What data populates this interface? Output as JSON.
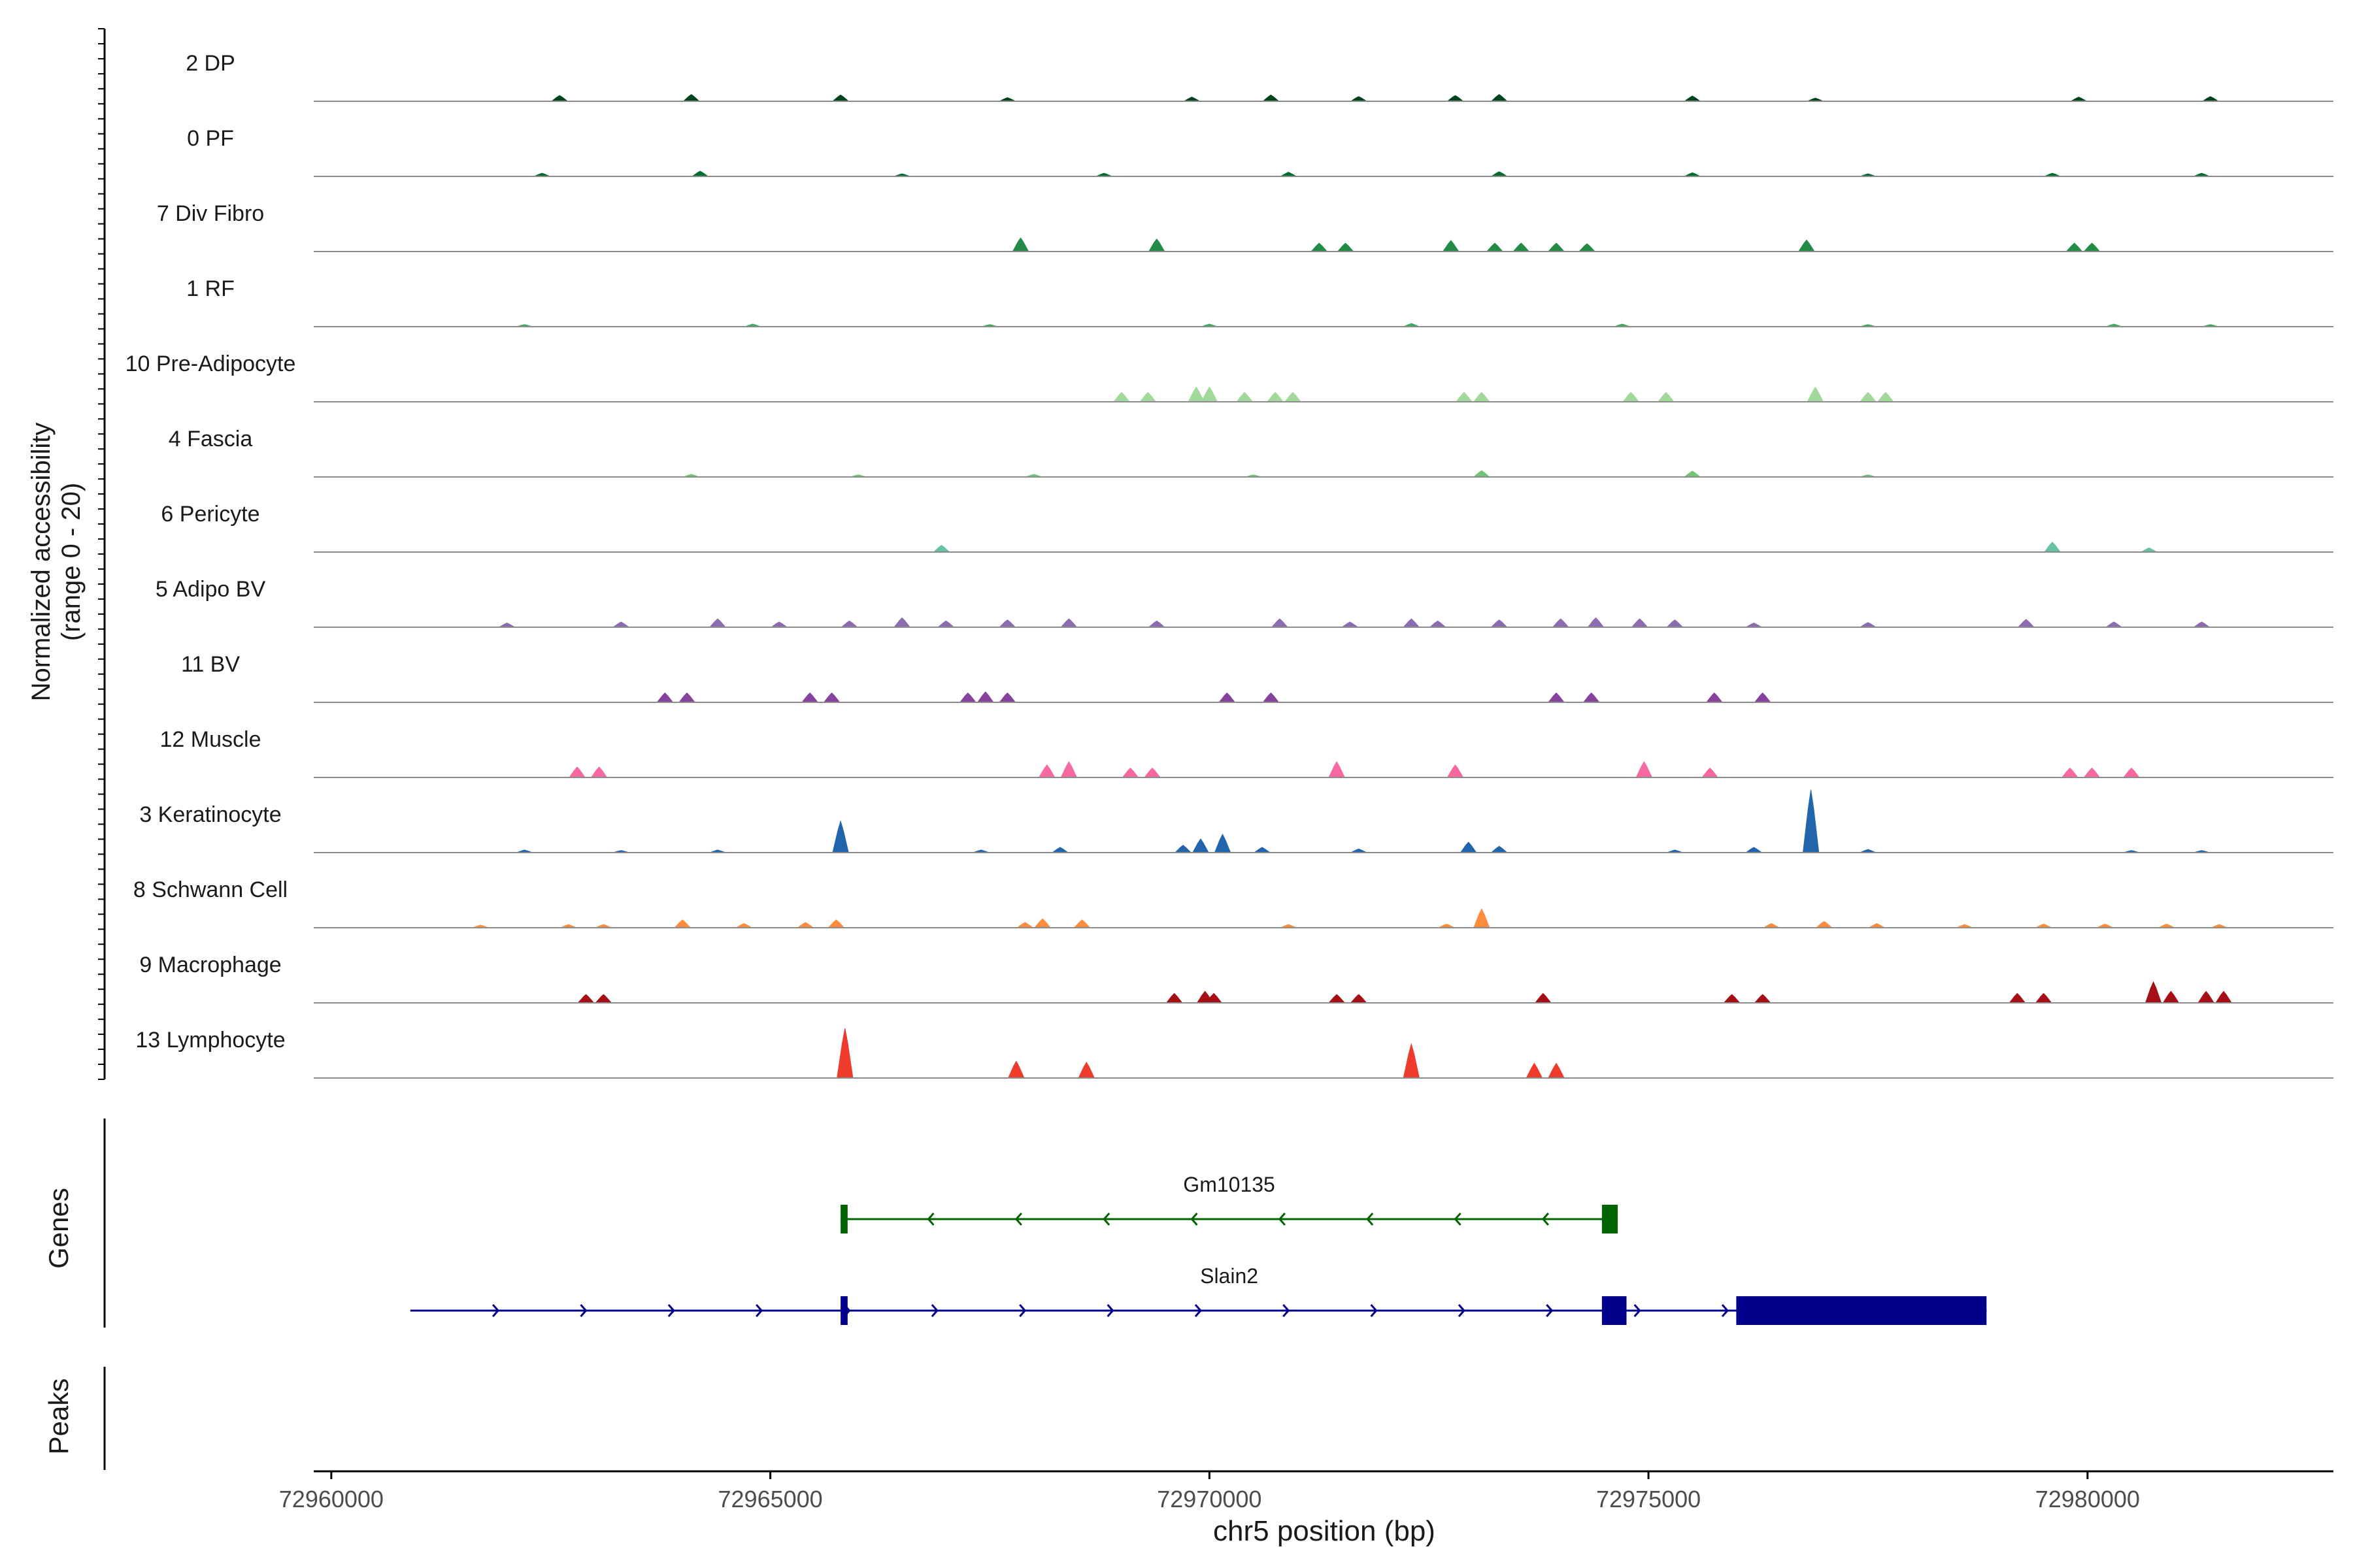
{
  "chart_data": {
    "type": "area",
    "title": "",
    "xlabel": "chr5 position (bp)",
    "ylabel_line1": "Normalized accessibility",
    "ylabel_line2": "(range 0 - 20)",
    "xlim": [
      72959800,
      72982800
    ],
    "x_ticks": [
      72960000,
      72965000,
      72970000,
      72975000,
      72980000
    ],
    "x_tick_labels": [
      "72960000",
      "72965000",
      "72970000",
      "72975000",
      "72980000"
    ],
    "ylim": [
      0,
      20
    ],
    "tracks": [
      {
        "name": "2 DP",
        "color": "#00441b",
        "peaks": [
          [
            72962600,
            1.1
          ],
          [
            72964100,
            1.3
          ],
          [
            72965800,
            1.2
          ],
          [
            72967700,
            0.7
          ],
          [
            72969800,
            0.8
          ],
          [
            72970700,
            1.2
          ],
          [
            72971700,
            0.9
          ],
          [
            72972800,
            1.1
          ],
          [
            72973300,
            1.3
          ],
          [
            72975500,
            1.0
          ],
          [
            72976900,
            0.6
          ],
          [
            72979900,
            0.8
          ],
          [
            72981400,
            0.9
          ]
        ]
      },
      {
        "name": "0 PF",
        "color": "#006d2c",
        "peaks": [
          [
            72962400,
            0.6
          ],
          [
            72964200,
            1.0
          ],
          [
            72966500,
            0.5
          ],
          [
            72968800,
            0.6
          ],
          [
            72970900,
            0.8
          ],
          [
            72973300,
            0.9
          ],
          [
            72975500,
            0.7
          ],
          [
            72977500,
            0.5
          ],
          [
            72979600,
            0.6
          ],
          [
            72981300,
            0.6
          ]
        ]
      },
      {
        "name": "7 Div Fibro",
        "color": "#238b45",
        "peaks": [
          [
            72967850,
            2.6
          ],
          [
            72969400,
            2.4
          ],
          [
            72971250,
            1.6
          ],
          [
            72971550,
            1.6
          ],
          [
            72972750,
            2.1
          ],
          [
            72973250,
            1.6
          ],
          [
            72973550,
            1.6
          ],
          [
            72973950,
            1.6
          ],
          [
            72974300,
            1.5
          ],
          [
            72976800,
            2.2
          ],
          [
            72979850,
            1.6
          ],
          [
            72980050,
            1.6
          ]
        ]
      },
      {
        "name": "1 RF",
        "color": "#41ab5d",
        "peaks": [
          [
            72962200,
            0.4
          ],
          [
            72964800,
            0.5
          ],
          [
            72967500,
            0.4
          ],
          [
            72970000,
            0.5
          ],
          [
            72972300,
            0.6
          ],
          [
            72974700,
            0.5
          ],
          [
            72977500,
            0.4
          ],
          [
            72980300,
            0.5
          ],
          [
            72981400,
            0.4
          ]
        ]
      },
      {
        "name": "10 Pre-Adipocyte",
        "color": "#a1d99b",
        "peaks": [
          [
            72969000,
            1.8
          ],
          [
            72969300,
            1.8
          ],
          [
            72969850,
            2.8
          ],
          [
            72970000,
            2.8
          ],
          [
            72970400,
            1.8
          ],
          [
            72970750,
            1.8
          ],
          [
            72970950,
            1.8
          ],
          [
            72972900,
            1.8
          ],
          [
            72973100,
            1.8
          ],
          [
            72974800,
            1.8
          ],
          [
            72975200,
            1.8
          ],
          [
            72976900,
            2.8
          ],
          [
            72977500,
            1.8
          ],
          [
            72977700,
            1.8
          ]
        ]
      },
      {
        "name": "4 Fascia",
        "color": "#74c476",
        "peaks": [
          [
            72964100,
            0.5
          ],
          [
            72966000,
            0.4
          ],
          [
            72968000,
            0.5
          ],
          [
            72970500,
            0.4
          ],
          [
            72973100,
            1.2
          ],
          [
            72975500,
            1.1
          ],
          [
            72977500,
            0.4
          ]
        ]
      },
      {
        "name": "6 Pericyte",
        "color": "#66c2a4",
        "peaks": [
          [
            72966950,
            1.3
          ],
          [
            72979600,
            1.9
          ],
          [
            72980700,
            0.8
          ]
        ]
      },
      {
        "name": "5 Adipo BV",
        "color": "#8c6bb1",
        "peaks": [
          [
            72962000,
            0.8
          ],
          [
            72963300,
            1.0
          ],
          [
            72964400,
            1.6
          ],
          [
            72965100,
            1.0
          ],
          [
            72965900,
            1.2
          ],
          [
            72966500,
            1.8
          ],
          [
            72967000,
            1.2
          ],
          [
            72967700,
            1.4
          ],
          [
            72968400,
            1.6
          ],
          [
            72969400,
            1.2
          ],
          [
            72970800,
            1.6
          ],
          [
            72971600,
            1.0
          ],
          [
            72972300,
            1.6
          ],
          [
            72972600,
            1.2
          ],
          [
            72973300,
            1.4
          ],
          [
            72974000,
            1.6
          ],
          [
            72974400,
            1.8
          ],
          [
            72974900,
            1.6
          ],
          [
            72975300,
            1.4
          ],
          [
            72976200,
            0.8
          ],
          [
            72977500,
            0.9
          ],
          [
            72979300,
            1.5
          ],
          [
            72980300,
            1.0
          ],
          [
            72981300,
            1.0
          ]
        ]
      },
      {
        "name": "11 BV",
        "color": "#88419d",
        "peaks": [
          [
            72963800,
            1.8
          ],
          [
            72964050,
            1.8
          ],
          [
            72965450,
            1.8
          ],
          [
            72965700,
            1.8
          ],
          [
            72967250,
            1.8
          ],
          [
            72967450,
            2.0
          ],
          [
            72967700,
            1.8
          ],
          [
            72970200,
            1.8
          ],
          [
            72970700,
            1.8
          ],
          [
            72973950,
            1.8
          ],
          [
            72974350,
            1.8
          ],
          [
            72975750,
            1.8
          ],
          [
            72976300,
            1.8
          ]
        ]
      },
      {
        "name": "12 Muscle",
        "color": "#f768a1",
        "peaks": [
          [
            72962800,
            2.0
          ],
          [
            72963050,
            2.0
          ],
          [
            72968150,
            2.4
          ],
          [
            72968400,
            3.0
          ],
          [
            72969100,
            1.8
          ],
          [
            72969350,
            1.8
          ],
          [
            72971450,
            3.0
          ],
          [
            72972800,
            2.4
          ],
          [
            72974950,
            3.0
          ],
          [
            72975700,
            1.8
          ],
          [
            72979800,
            1.8
          ],
          [
            72980050,
            1.8
          ],
          [
            72980500,
            1.8
          ]
        ]
      },
      {
        "name": "3 Keratinocyte",
        "color": "#2166ac",
        "peaks": [
          [
            72962200,
            0.5
          ],
          [
            72963300,
            0.4
          ],
          [
            72964400,
            0.5
          ],
          [
            72965800,
            6.0
          ],
          [
            72967400,
            0.5
          ],
          [
            72968300,
            1.0
          ],
          [
            72969700,
            1.4
          ],
          [
            72969900,
            2.6
          ],
          [
            72970150,
            3.5
          ],
          [
            72970600,
            1.0
          ],
          [
            72971700,
            0.7
          ],
          [
            72972950,
            2.0
          ],
          [
            72973300,
            1.2
          ],
          [
            72975300,
            0.5
          ],
          [
            72976200,
            1.0
          ],
          [
            72976850,
            12.0
          ],
          [
            72977500,
            0.6
          ],
          [
            72980500,
            0.4
          ],
          [
            72981300,
            0.4
          ]
        ]
      },
      {
        "name": "8 Schwann Cell",
        "color": "#fd8d3c",
        "peaks": [
          [
            72961700,
            0.5
          ],
          [
            72962700,
            0.6
          ],
          [
            72963100,
            0.6
          ],
          [
            72964000,
            1.5
          ],
          [
            72964700,
            0.8
          ],
          [
            72965400,
            1.0
          ],
          [
            72965750,
            1.5
          ],
          [
            72967900,
            1.0
          ],
          [
            72968100,
            1.7
          ],
          [
            72968550,
            1.5
          ],
          [
            72970900,
            0.6
          ],
          [
            72972700,
            0.7
          ],
          [
            72973100,
            3.6
          ],
          [
            72976400,
            0.8
          ],
          [
            72977000,
            1.2
          ],
          [
            72977600,
            0.8
          ],
          [
            72978600,
            0.6
          ],
          [
            72979500,
            0.7
          ],
          [
            72980200,
            0.7
          ],
          [
            72980900,
            0.7
          ],
          [
            72981500,
            0.6
          ]
        ]
      },
      {
        "name": "9 Macrophage",
        "color": "#a50f15",
        "peaks": [
          [
            72962900,
            1.6
          ],
          [
            72963100,
            1.6
          ],
          [
            72969600,
            1.8
          ],
          [
            72969950,
            2.2
          ],
          [
            72970050,
            1.8
          ],
          [
            72971450,
            1.6
          ],
          [
            72971700,
            1.6
          ],
          [
            72973800,
            1.8
          ],
          [
            72975950,
            1.6
          ],
          [
            72976300,
            1.6
          ],
          [
            72979200,
            1.8
          ],
          [
            72979500,
            1.8
          ],
          [
            72980750,
            4.0
          ],
          [
            72980950,
            2.2
          ],
          [
            72981350,
            2.2
          ],
          [
            72981550,
            2.2
          ]
        ]
      },
      {
        "name": "13 Lymphocyte",
        "color": "#ef3b2c",
        "peaks": [
          [
            72965850,
            9.5
          ],
          [
            72967800,
            3.2
          ],
          [
            72968600,
            3.0
          ],
          [
            72972300,
            6.5
          ],
          [
            72973700,
            2.8
          ],
          [
            72973950,
            2.8
          ]
        ]
      }
    ],
    "genes_label": "Genes",
    "peaks_label": "Peaks",
    "genes": [
      {
        "name": "Gm10135",
        "color": "#006400",
        "strand": "-",
        "start": 72965800,
        "end": 72974650,
        "exons": [
          [
            72965800,
            72965880
          ],
          [
            72974470,
            72974650
          ]
        ]
      },
      {
        "name": "Slain2",
        "color": "#00008b",
        "strand": "+",
        "start": 72960900,
        "end": 72978850,
        "exons": [
          [
            72965800,
            72965880
          ],
          [
            72974470,
            72974750
          ],
          [
            72976000,
            72978850
          ]
        ]
      }
    ]
  }
}
